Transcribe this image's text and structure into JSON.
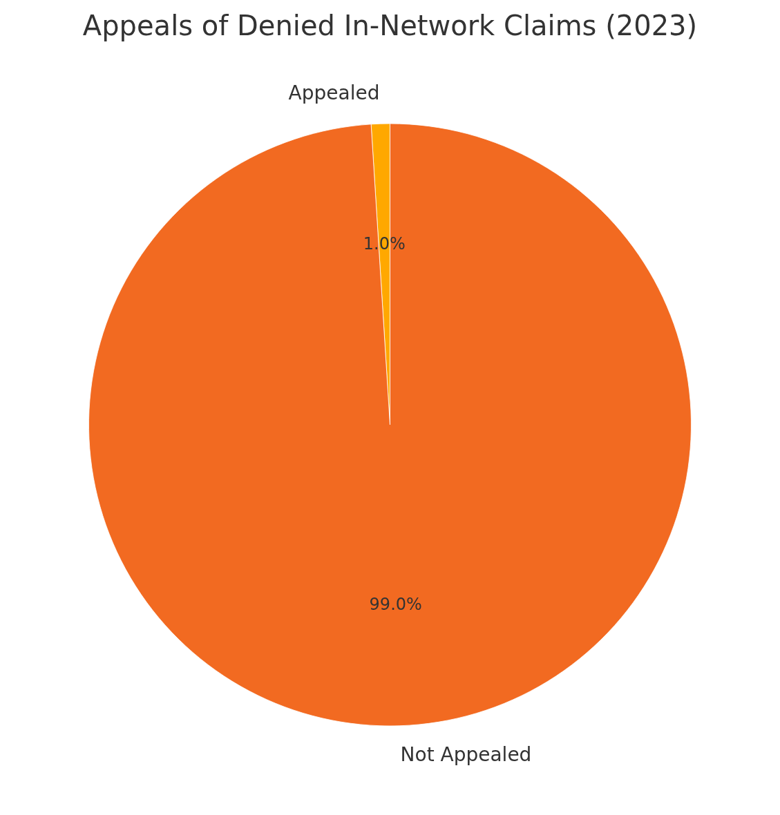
{
  "chart_data": {
    "type": "pie",
    "title": "Appeals of Denied In-Network Claims (2023)",
    "categories": [
      "Appealed",
      "Not Appealed"
    ],
    "values": [
      1,
      99
    ],
    "colors": [
      "#ffa800",
      "#f26a21"
    ],
    "value_labels": [
      "1.0%",
      "99.0%"
    ]
  }
}
